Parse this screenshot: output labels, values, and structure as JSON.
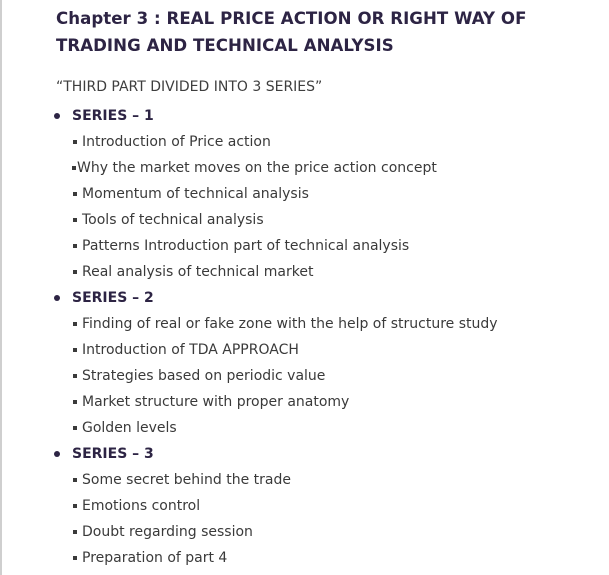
{
  "chapter": {
    "title": "Chapter 3 : REAL PRICE ACTION OR RIGHT WAY OF TRADING AND TECHNICAL ANALYSIS",
    "subtitle": "“THIRD PART DIVIDED INTO 3 SERIES”"
  },
  "series": [
    {
      "title": "SERIES – 1",
      "items": [
        "Introduction of Price action",
        "Why the market moves on the price action concept",
        "Momentum of technical analysis",
        "Tools of technical analysis",
        "Patterns Introduction part of technical analysis",
        "Real analysis of technical market"
      ]
    },
    {
      "title": "SERIES – 2",
      "items": [
        "Finding of real or fake zone with the help of structure study",
        "Introduction of TDA APPROACH",
        "Strategies based on periodic value",
        "Market structure with proper anatomy",
        "Golden levels"
      ]
    },
    {
      "title": "SERIES – 3",
      "items": [
        "Some secret behind the trade",
        "Emotions control",
        "Doubt regarding session",
        "Preparation of part 4"
      ]
    }
  ]
}
